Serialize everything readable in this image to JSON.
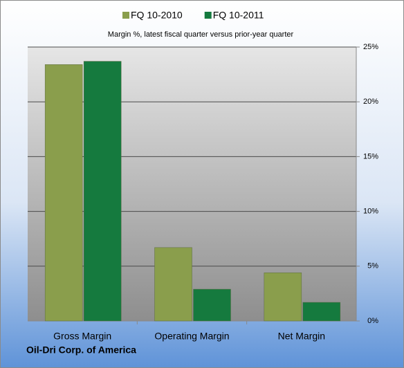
{
  "chart_data": {
    "type": "bar",
    "title": "Margin %,  latest fiscal quarter versus prior-year quarter",
    "footer": "Oil-Dri Corp. of America",
    "categories": [
      "Gross Margin",
      "Operating Margin",
      "Net Margin"
    ],
    "series": [
      {
        "name": "FQ 10-2010",
        "color": "#8a9e4c",
        "values": [
          23.4,
          6.7,
          4.4
        ]
      },
      {
        "name": "FQ 10-2011",
        "color": "#157a3e",
        "values": [
          23.7,
          2.9,
          1.7
        ]
      }
    ],
    "ylim": [
      0,
      25
    ],
    "yticks": [
      {
        "value": 0,
        "label": "0%"
      },
      {
        "value": 5,
        "label": "5%"
      },
      {
        "value": 10,
        "label": "10%"
      },
      {
        "value": 15,
        "label": "15%"
      },
      {
        "value": 20,
        "label": "20%"
      },
      {
        "value": 25,
        "label": "25%"
      }
    ],
    "grid": true,
    "legend": "top"
  }
}
